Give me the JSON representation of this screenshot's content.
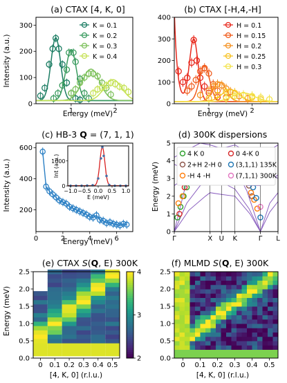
{
  "chart_data": [
    {
      "id": "a",
      "type": "line",
      "title": "(a) CTAX [4, K, 0]",
      "xlabel": "Energy (meV)",
      "ylabel": "Intensity (a.u.)",
      "xlim": [
        0.2,
        2.4
      ],
      "ylim": [
        0,
        330
      ],
      "xticks": [
        1,
        2
      ],
      "yticks": [
        0,
        100,
        200,
        300
      ],
      "grid": false,
      "legend_position": "top-right",
      "series": [
        {
          "name": "K = 0.1",
          "color": "#1a7c62",
          "peak": 0.65,
          "amp": 240,
          "width": 0.11,
          "points": [
            [
              0.3,
              30
            ],
            [
              0.4,
              60
            ],
            [
              0.5,
              150
            ],
            [
              0.58,
              210
            ],
            [
              0.65,
              250
            ],
            [
              0.72,
              210
            ],
            [
              0.8,
              150
            ],
            [
              0.9,
              80
            ],
            [
              1.0,
              40
            ],
            [
              1.1,
              20
            ],
            [
              1.2,
              15
            ]
          ]
        },
        {
          "name": "K = 0.2",
          "color": "#3a9b5f",
          "peak": 1.0,
          "amp": 195,
          "width": 0.12,
          "points": [
            [
              0.6,
              20
            ],
            [
              0.7,
              40
            ],
            [
              0.8,
              70
            ],
            [
              0.9,
              130
            ],
            [
              0.95,
              195
            ],
            [
              1.05,
              195
            ],
            [
              1.1,
              160
            ],
            [
              1.2,
              95
            ],
            [
              1.3,
              40
            ],
            [
              1.4,
              20
            ]
          ]
        },
        {
          "name": "K = 0.3",
          "color": "#7cc05a",
          "peak": 1.45,
          "amp": 120,
          "width": 0.2,
          "points": [
            [
              1.0,
              40
            ],
            [
              1.1,
              55
            ],
            [
              1.2,
              80
            ],
            [
              1.3,
              100
            ],
            [
              1.4,
              115
            ],
            [
              1.5,
              115
            ],
            [
              1.6,
              105
            ],
            [
              1.7,
              80
            ],
            [
              1.8,
              60
            ],
            [
              1.9,
              35
            ]
          ]
        },
        {
          "name": "K = 0.4",
          "color": "#c6e255",
          "peak": 1.95,
          "amp": 80,
          "width": 0.2,
          "points": [
            [
              1.5,
              40
            ],
            [
              1.6,
              55
            ],
            [
              1.7,
              60
            ],
            [
              1.8,
              70
            ],
            [
              1.9,
              80
            ],
            [
              2.0,
              75
            ],
            [
              2.1,
              65
            ],
            [
              2.2,
              60
            ],
            [
              2.3,
              45
            ]
          ]
        }
      ]
    },
    {
      "id": "b",
      "type": "line",
      "title": "(b) CTAX [-H,4,-H]",
      "xlabel": "Energy (meV)",
      "ylabel": "",
      "xlim": [
        0.2,
        2.6
      ],
      "ylim": [
        0,
        400
      ],
      "xticks": [
        1,
        2
      ],
      "yticks": [
        0,
        100,
        200,
        300,
        400
      ],
      "grid": false,
      "legend_position": "top-right",
      "series": [
        {
          "name": "H = 0.1",
          "color": "#e8271b",
          "peak": 0.65,
          "amp": 290,
          "width": 0.1,
          "points": [
            [
              0.3,
              150
            ],
            [
              0.4,
              100
            ],
            [
              0.5,
              120
            ],
            [
              0.6,
              190
            ],
            [
              0.65,
              295
            ],
            [
              0.72,
              200
            ],
            [
              0.8,
              120
            ],
            [
              0.9,
              80
            ],
            [
              1.0,
              50
            ],
            [
              1.2,
              30
            ]
          ]
        },
        {
          "name": "H = 0.15",
          "color": "#f05a1a",
          "peak": 0.9,
          "amp": 165,
          "width": 0.12,
          "points": [
            [
              0.5,
              60
            ],
            [
              0.6,
              80
            ],
            [
              0.7,
              110
            ],
            [
              0.8,
              150
            ],
            [
              0.9,
              165
            ],
            [
              1.0,
              140
            ],
            [
              1.1,
              90
            ],
            [
              1.2,
              60
            ],
            [
              1.4,
              30
            ]
          ]
        },
        {
          "name": "H = 0.2",
          "color": "#f5901e",
          "peak": 1.25,
          "amp": 90,
          "width": 0.15,
          "points": [
            [
              0.8,
              40
            ],
            [
              1.0,
              60
            ],
            [
              1.1,
              80
            ],
            [
              1.2,
              90
            ],
            [
              1.3,
              85
            ],
            [
              1.4,
              70
            ],
            [
              1.5,
              55
            ],
            [
              1.7,
              35
            ],
            [
              1.9,
              25
            ]
          ]
        },
        {
          "name": "H = 0.25",
          "color": "#f7c11e",
          "peak": 1.5,
          "amp": 55,
          "width": 0.2,
          "points": [
            [
              1.0,
              25
            ],
            [
              1.2,
              40
            ],
            [
              1.4,
              55
            ],
            [
              1.6,
              50
            ],
            [
              1.8,
              40
            ],
            [
              2.0,
              30
            ],
            [
              2.2,
              20
            ]
          ]
        },
        {
          "name": "H = 0.3",
          "color": "#f3e34a",
          "peak": 1.8,
          "amp": 40,
          "width": 0.25,
          "points": [
            [
              1.4,
              25
            ],
            [
              1.6,
              35
            ],
            [
              1.8,
              40
            ],
            [
              2.0,
              35
            ],
            [
              2.2,
              28
            ],
            [
              2.4,
              20
            ]
          ]
        }
      ]
    },
    {
      "id": "c",
      "type": "scatter",
      "title_prefix": "(c) HB-3",
      "title_vector": "Q",
      "title_value": " = (7, 1, 1)",
      "xlabel": "Energy (meV)",
      "ylabel": "Intensity (a.u.)",
      "xlim": [
        0,
        7.2
      ],
      "ylim": [
        60,
        630
      ],
      "xticks": [
        0,
        2,
        4,
        6
      ],
      "yticks": [
        200,
        400,
        600
      ],
      "color": "#2a7fc4",
      "points": [
        [
          0.5,
          575
        ],
        [
          0.75,
          350
        ],
        [
          1.0,
          320
        ],
        [
          1.25,
          300
        ],
        [
          1.5,
          280
        ],
        [
          1.75,
          260
        ],
        [
          2.0,
          250
        ],
        [
          2.25,
          240
        ],
        [
          2.5,
          220
        ],
        [
          2.75,
          210
        ],
        [
          3.0,
          200
        ],
        [
          3.25,
          190
        ],
        [
          3.5,
          180
        ],
        [
          3.75,
          170
        ],
        [
          4.0,
          155
        ],
        [
          4.25,
          150
        ],
        [
          4.5,
          165
        ],
        [
          4.75,
          135
        ],
        [
          5.0,
          130
        ],
        [
          5.25,
          115
        ],
        [
          5.5,
          120
        ],
        [
          5.75,
          110
        ],
        [
          6.0,
          105
        ],
        [
          6.25,
          100
        ],
        [
          6.5,
          110
        ],
        [
          6.75,
          105
        ]
      ],
      "inset": {
        "xlabel": "E (meV)",
        "ylabel": "Int (a.u.)",
        "xlim": [
          -1.1,
          1.1
        ],
        "ylim": [
          0,
          1600
        ],
        "xticks": [
          -1.0,
          -0.5,
          0.0,
          0.5,
          1.0
        ],
        "xtick_labels": [
          "−1.0",
          "−0.5",
          "0.0",
          "0.5",
          "1.0"
        ],
        "yticks": [
          0,
          1000
        ],
        "points": [
          [
            -1.0,
            10
          ],
          [
            -0.8,
            10
          ],
          [
            -0.6,
            10
          ],
          [
            -0.4,
            15
          ],
          [
            -0.2,
            30
          ],
          [
            0.0,
            300
          ],
          [
            0.1,
            1100
          ],
          [
            0.15,
            1550
          ],
          [
            0.2,
            1200
          ],
          [
            0.3,
            400
          ],
          [
            0.4,
            40
          ],
          [
            0.6,
            10
          ],
          [
            0.8,
            10
          ],
          [
            1.0,
            10
          ]
        ],
        "fit_center": 0.15,
        "fit_amp": 1550,
        "fit_sigma": 0.09,
        "fit_color": "#d81f1f",
        "point_color": "#4a6fa5"
      }
    },
    {
      "id": "d",
      "type": "line",
      "title": "(d) 300K dispersions",
      "xlabel": "",
      "ylabel": "Energy (meV)",
      "ylim": [
        0,
        5
      ],
      "yticks": [
        0,
        1,
        2,
        3,
        4,
        5
      ],
      "xtick_labels": [
        "Γ",
        "X",
        "U",
        "K",
        "Γ",
        "L"
      ],
      "curve_color": "#8a5fbf",
      "legend_position": "top",
      "legend": [
        {
          "label": "4 K 0",
          "color": "#2ca02c"
        },
        {
          "label": "0 4-K 0",
          "color": "#d62728"
        },
        {
          "label": "2+H 2-H 0",
          "color": "#8c564b"
        },
        {
          "label": "(3,1,1) 135K",
          "color": "#1f77b4"
        },
        {
          "label": "-H 4 -H",
          "color": "#ff7f0e"
        },
        {
          "label": "(7,1,1) 300K",
          "color": "#e377c2"
        }
      ],
      "markers": [
        {
          "series": "4 K 0",
          "points": [
            [
              0.03,
              0.8
            ],
            [
              0.06,
              1.4
            ],
            [
              0.09,
              2.0
            ],
            [
              0.12,
              2.5
            ]
          ]
        },
        {
          "series": "0 4-K 0",
          "points": [
            [
              0.05,
              1.0
            ],
            [
              0.1,
              2.5
            ]
          ]
        },
        {
          "series": "2+H 2-H 0",
          "points": [
            [
              0.72,
              2.6
            ],
            [
              0.75,
              2.0
            ]
          ]
        },
        {
          "series": "-H 4 -H",
          "points": [
            [
              0.04,
              1.6
            ],
            [
              0.08,
              2.0
            ],
            [
              0.74,
              2.2
            ],
            [
              0.77,
              1.8
            ],
            [
              0.8,
              1.3
            ]
          ]
        },
        {
          "series": "(3,1,1) 135K",
          "points": [
            [
              0.76,
              2.5
            ],
            [
              0.79,
              1.9
            ],
            [
              0.83,
              0.8
            ]
          ]
        },
        {
          "series": "(7,1,1) 300K",
          "points": [
            [
              0.83,
              1.4
            ]
          ]
        }
      ]
    },
    {
      "id": "e",
      "type": "heatmap",
      "title_prefix": "(e) CTAX ",
      "title_S": "S",
      "title_Q": "Q",
      "title_suffix": ", E) 300K",
      "xlabel": "[4, K, 0] (r.l.u.)",
      "ylabel": "Energy (meV)",
      "xlim": [
        -0.05,
        0.55
      ],
      "ylim": [
        0,
        2.5
      ],
      "xticks": [
        0,
        0.1,
        0.2,
        0.3,
        0.4,
        0.5
      ],
      "yticks": [
        0,
        0.5,
        1.0,
        1.5,
        2.0,
        2.5
      ],
      "colorbar_ticks": [
        2,
        3,
        4
      ],
      "colorbar_range": [
        2,
        4
      ]
    },
    {
      "id": "f",
      "type": "heatmap",
      "title_prefix": "(f) MLMD ",
      "title_S": "S",
      "title_Q": "Q",
      "title_suffix": ", E) 300K",
      "xlabel": "[4, K, 0] (r.l.u.)",
      "ylabel": "",
      "xlim": [
        -0.05,
        0.55
      ],
      "ylim": [
        0,
        2.5
      ],
      "xticks": [
        0,
        0.1,
        0.2,
        0.3,
        0.4,
        0.5
      ],
      "yticks": [
        0,
        0.5,
        1.0,
        1.5,
        2.0,
        2.5
      ]
    }
  ]
}
